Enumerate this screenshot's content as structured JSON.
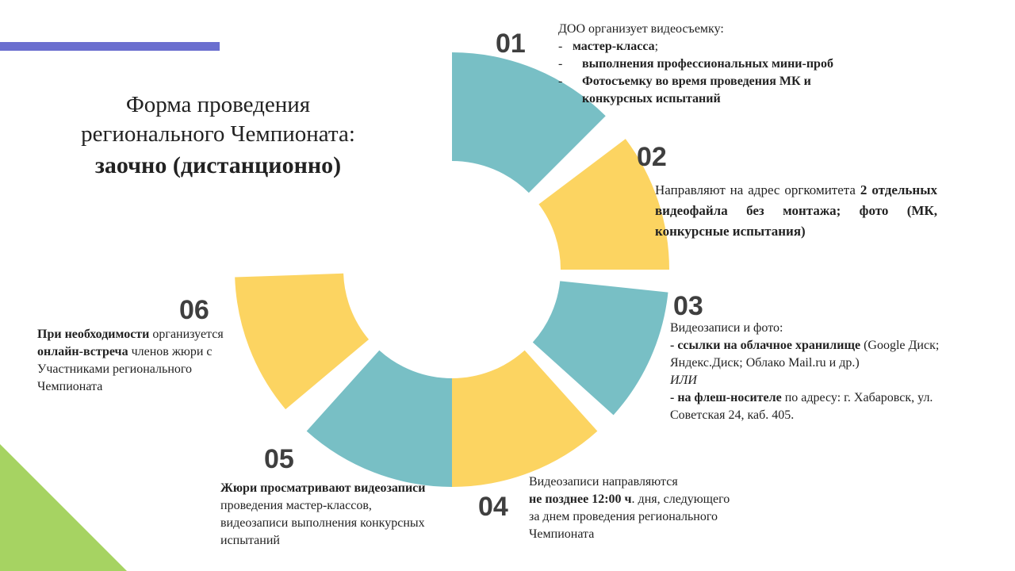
{
  "colors": {
    "teal": "#78bfc5",
    "yellow": "#fcd461",
    "accent": "#6b6fcf",
    "green": "#a6d362"
  },
  "title": {
    "line1": "Форма проведения",
    "line2": "регионального Чемпионата:",
    "line3": "заочно (дистанционно)"
  },
  "steps": [
    {
      "num": "01",
      "color": "teal",
      "intro": "ДОО организует видеосъемку:",
      "items": [
        {
          "dash": "-",
          "bold": "мастер-класса",
          "tail": ";"
        },
        {
          "dash": "-",
          "bold": "выполнения профессиональных мини-проб",
          "tail": ""
        },
        {
          "dash": "-",
          "bold": "Фотосъемку во время проведения МК и конкурсных испытаний",
          "tail": ""
        }
      ]
    },
    {
      "num": "02",
      "color": "yellow",
      "normal": "Направляют на адрес оргкомитета ",
      "bold": "2 отдельных видеофайла без монтажа; фото (МК, конкурсные испытания)"
    },
    {
      "num": "03",
      "color": "teal",
      "intro": "Видеозаписи и фото:",
      "l1_bold": "- ссылки на облачное хранилище",
      "l1_rest": " (Google Диск; Яндекс.Диск; Облако Mail.ru  и др.)",
      "or": "ИЛИ",
      "l2_bold": "- на флеш-носителе",
      "l2_rest": " по адресу: г. Хабаровск, ул. Советская 24, каб. 405."
    },
    {
      "num": "04",
      "color": "yellow",
      "line1": "Видеозаписи направляются",
      "bold": "не позднее 12:00 ч",
      "rest": ". дня, следующего за днем проведения регионального Чемпионата"
    },
    {
      "num": "05",
      "color": "teal",
      "bold": "Жюри просматривают видеозаписи",
      "rest": " проведения мастер-классов, видеозаписи выполнения конкурсных испытаний"
    },
    {
      "num": "06",
      "color": "yellow",
      "bold1": "При необходимости",
      "mid": " организуется ",
      "bold2": "онлайн-встреча",
      "rest": " членов жюри с Участниками регионального Чемпионата"
    }
  ]
}
